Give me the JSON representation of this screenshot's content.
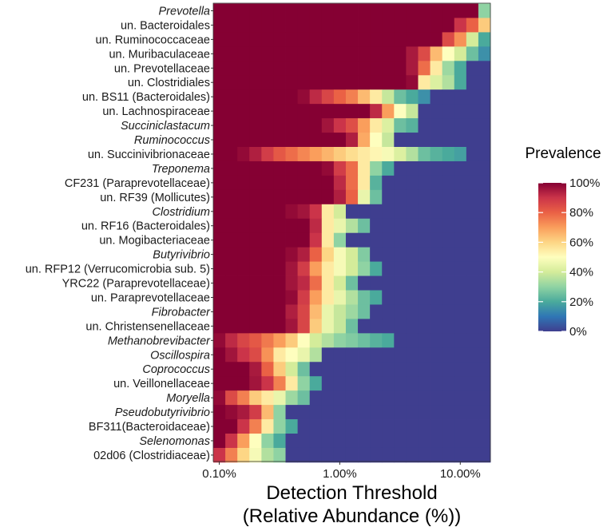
{
  "chart_data": {
    "type": "heatmap",
    "title": "",
    "xlabel_line1": "Detection Threshold",
    "xlabel_line2": "(Relative Abundance (%))",
    "x_scale": "log10",
    "x_tick_labels": [
      "0.10%",
      "1.00%",
      "10.00%"
    ],
    "x_tick_values": [
      0.1,
      1,
      10
    ],
    "detection_thresholds": [
      0.1,
      0.1259,
      0.1585,
      0.1995,
      0.2512,
      0.3162,
      0.3981,
      0.5012,
      0.631,
      0.7943,
      1.0,
      1.2589,
      1.5849,
      1.9953,
      2.5119,
      3.1623,
      3.9811,
      5.0119,
      6.3096,
      7.9433,
      10.0,
      12.5893,
      15.8489
    ],
    "xlim": [
      0.0891,
      17.78
    ],
    "legend": {
      "title": "Prevalence",
      "tick_labels": [
        "100%",
        "80%",
        "60%",
        "40%",
        "20%",
        "0%"
      ],
      "tick_values": [
        100,
        80,
        60,
        40,
        20,
        0
      ],
      "colors": [
        "#3F3E8F",
        "#2F76B5",
        "#4AAA9C",
        "#8FD3A3",
        "#D4EC9A",
        "#FEFEBE",
        "#FDD685",
        "#FA9E5C",
        "#EA6145",
        "#CB3449",
        "#850033"
      ]
    },
    "taxa": [
      {
        "name": "Prevotella",
        "italic": true,
        "prevalence": [
          100,
          100,
          100,
          100,
          100,
          100,
          100,
          100,
          100,
          100,
          100,
          100,
          100,
          100,
          100,
          100,
          100,
          100,
          100,
          100,
          100,
          100,
          30
        ]
      },
      {
        "name": "un. Bacteroidales",
        "italic": false,
        "prevalence": [
          100,
          100,
          100,
          100,
          100,
          100,
          100,
          100,
          100,
          100,
          100,
          100,
          100,
          100,
          100,
          100,
          100,
          100,
          100,
          100,
          90,
          80,
          62
        ]
      },
      {
        "name": "un. Ruminococcaceae",
        "italic": false,
        "prevalence": [
          100,
          100,
          100,
          100,
          100,
          100,
          100,
          100,
          100,
          100,
          100,
          100,
          100,
          100,
          100,
          100,
          100,
          100,
          100,
          85,
          72,
          40,
          20
        ]
      },
      {
        "name": "un. Muribaculaceae",
        "italic": false,
        "prevalence": [
          100,
          100,
          100,
          100,
          100,
          100,
          100,
          100,
          100,
          100,
          100,
          100,
          100,
          100,
          100,
          100,
          95,
          85,
          65,
          50,
          40,
          25,
          15
        ]
      },
      {
        "name": "un. Prevotellaceae",
        "italic": false,
        "prevalence": [
          100,
          100,
          100,
          100,
          100,
          100,
          100,
          100,
          100,
          100,
          100,
          100,
          100,
          100,
          100,
          100,
          95,
          78,
          55,
          32,
          20,
          0,
          0
        ]
      },
      {
        "name": "un. Clostridiales",
        "italic": false,
        "prevalence": [
          100,
          100,
          100,
          100,
          100,
          100,
          100,
          100,
          100,
          100,
          100,
          100,
          100,
          100,
          100,
          100,
          98,
          55,
          42,
          35,
          20,
          0,
          0
        ]
      },
      {
        "name": "un. BS11 (Bacteroidales)",
        "italic": false,
        "prevalence": [
          100,
          100,
          100,
          100,
          100,
          100,
          100,
          98,
          92,
          86,
          80,
          75,
          65,
          55,
          38,
          25,
          20,
          15,
          0,
          0,
          0,
          0,
          0
        ]
      },
      {
        "name": "un. Lachnospiraceae",
        "italic": false,
        "prevalence": [
          100,
          100,
          100,
          100,
          100,
          100,
          100,
          100,
          100,
          100,
          100,
          100,
          100,
          92,
          70,
          50,
          38,
          0,
          0,
          0,
          0,
          0,
          0
        ]
      },
      {
        "name": "Succiniclastacum",
        "italic": true,
        "prevalence": [
          100,
          100,
          100,
          100,
          100,
          100,
          100,
          100,
          100,
          96,
          90,
          84,
          70,
          55,
          42,
          25,
          22,
          0,
          0,
          0,
          0,
          0,
          0
        ]
      },
      {
        "name": "Ruminococcus",
        "italic": true,
        "prevalence": [
          100,
          100,
          100,
          100,
          100,
          100,
          100,
          100,
          100,
          100,
          100,
          94,
          68,
          50,
          38,
          0,
          0,
          0,
          0,
          0,
          0,
          0,
          0
        ]
      },
      {
        "name": "un. Succinivibrionaceae",
        "italic": false,
        "prevalence": [
          100,
          100,
          98,
          94,
          88,
          82,
          78,
          74,
          70,
          66,
          62,
          58,
          55,
          52,
          48,
          42,
          35,
          25,
          22,
          20,
          18,
          0,
          0
        ]
      },
      {
        "name": "Treponema",
        "italic": true,
        "prevalence": [
          100,
          100,
          100,
          100,
          100,
          100,
          100,
          100,
          100,
          98,
          88,
          78,
          55,
          30,
          20,
          0,
          0,
          0,
          0,
          0,
          0,
          0,
          0
        ]
      },
      {
        "name": "CF231 (Paraprevotellaceae)",
        "italic": false,
        "prevalence": [
          100,
          100,
          100,
          100,
          100,
          100,
          100,
          100,
          100,
          100,
          92,
          78,
          55,
          22,
          0,
          0,
          0,
          0,
          0,
          0,
          0,
          0,
          0
        ]
      },
      {
        "name": "un. RF39 (Mollicutes)",
        "italic": false,
        "prevalence": [
          100,
          100,
          100,
          100,
          100,
          100,
          100,
          100,
          100,
          100,
          94,
          80,
          45,
          25,
          0,
          0,
          0,
          0,
          0,
          0,
          0,
          0,
          0
        ]
      },
      {
        "name": "Clostridium",
        "italic": true,
        "prevalence": [
          100,
          100,
          100,
          100,
          100,
          100,
          98,
          96,
          90,
          55,
          40,
          0,
          0,
          0,
          0,
          0,
          0,
          0,
          0,
          0,
          0,
          0,
          0
        ]
      },
      {
        "name": "un. RF16 (Bacteroidales)",
        "italic": false,
        "prevalence": [
          100,
          100,
          100,
          100,
          100,
          100,
          100,
          100,
          92,
          55,
          45,
          35,
          25,
          0,
          0,
          0,
          0,
          0,
          0,
          0,
          0,
          0,
          0
        ]
      },
      {
        "name": "un. Mogibacteriaceae",
        "italic": false,
        "prevalence": [
          100,
          100,
          100,
          100,
          100,
          100,
          100,
          100,
          90,
          55,
          30,
          0,
          0,
          0,
          0,
          0,
          0,
          0,
          0,
          0,
          0,
          0,
          0
        ]
      },
      {
        "name": "Butyrivibrio",
        "italic": true,
        "prevalence": [
          100,
          100,
          100,
          100,
          100,
          100,
          98,
          94,
          80,
          60,
          48,
          40,
          28,
          0,
          0,
          0,
          0,
          0,
          0,
          0,
          0,
          0,
          0
        ]
      },
      {
        "name": "un. RFP12 (Verrucomicrobia sub. 5)",
        "italic": false,
        "prevalence": [
          100,
          100,
          100,
          100,
          100,
          100,
          96,
          88,
          70,
          55,
          48,
          40,
          30,
          20,
          0,
          0,
          0,
          0,
          0,
          0,
          0,
          0,
          0
        ]
      },
      {
        "name": "YRC22 (Paraprevotellaceae)",
        "italic": false,
        "prevalence": [
          100,
          100,
          100,
          100,
          100,
          100,
          96,
          92,
          78,
          55,
          40,
          25,
          0,
          0,
          0,
          0,
          0,
          0,
          0,
          0,
          0,
          0,
          0
        ]
      },
      {
        "name": "un. Paraprevotellaceae",
        "italic": false,
        "prevalence": [
          100,
          100,
          100,
          100,
          100,
          100,
          98,
          88,
          70,
          55,
          45,
          35,
          25,
          20,
          0,
          0,
          0,
          0,
          0,
          0,
          0,
          0,
          0
        ]
      },
      {
        "name": "Fibrobacter",
        "italic": true,
        "prevalence": [
          100,
          100,
          100,
          100,
          100,
          100,
          94,
          86,
          65,
          45,
          38,
          32,
          25,
          0,
          0,
          0,
          0,
          0,
          0,
          0,
          0,
          0,
          0
        ]
      },
      {
        "name": "un. Christensenellaceae",
        "italic": false,
        "prevalence": [
          100,
          100,
          100,
          100,
          100,
          100,
          96,
          86,
          62,
          45,
          38,
          25,
          0,
          0,
          0,
          0,
          0,
          0,
          0,
          0,
          0,
          0,
          0
        ]
      },
      {
        "name": "Methanobrevibacter",
        "italic": true,
        "prevalence": [
          98,
          92,
          86,
          82,
          76,
          70,
          62,
          50,
          40,
          35,
          30,
          28,
          25,
          22,
          20,
          0,
          0,
          0,
          0,
          0,
          0,
          0,
          0
        ]
      },
      {
        "name": "Oscillospira",
        "italic": true,
        "prevalence": [
          100,
          96,
          90,
          85,
          72,
          55,
          50,
          45,
          35,
          0,
          0,
          0,
          0,
          0,
          0,
          0,
          0,
          0,
          0,
          0,
          0,
          0,
          0
        ]
      },
      {
        "name": "Coprococcus",
        "italic": true,
        "prevalence": [
          100,
          100,
          100,
          95,
          80,
          62,
          40,
          25,
          0,
          0,
          0,
          0,
          0,
          0,
          0,
          0,
          0,
          0,
          0,
          0,
          0,
          0,
          0
        ]
      },
      {
        "name": "un. Veillonellaceae",
        "italic": false,
        "prevalence": [
          100,
          100,
          100,
          96,
          90,
          75,
          55,
          30,
          20,
          0,
          0,
          0,
          0,
          0,
          0,
          0,
          0,
          0,
          0,
          0,
          0,
          0,
          0
        ]
      },
      {
        "name": "Moryella",
        "italic": true,
        "prevalence": [
          98,
          85,
          75,
          62,
          55,
          45,
          32,
          25,
          0,
          0,
          0,
          0,
          0,
          0,
          0,
          0,
          0,
          0,
          0,
          0,
          0,
          0,
          0
        ]
      },
      {
        "name": "Pseudobutyrivibrio",
        "italic": true,
        "prevalence": [
          100,
          98,
          95,
          88,
          65,
          30,
          0,
          0,
          0,
          0,
          0,
          0,
          0,
          0,
          0,
          0,
          0,
          0,
          0,
          0,
          0,
          0,
          0
        ]
      },
      {
        "name": "BF311(Bacteroidaceae)",
        "italic": false,
        "prevalence": [
          100,
          100,
          90,
          75,
          55,
          30,
          20,
          0,
          0,
          0,
          0,
          0,
          0,
          0,
          0,
          0,
          0,
          0,
          0,
          0,
          0,
          0,
          0
        ]
      },
      {
        "name": "Selenomonas",
        "italic": true,
        "prevalence": [
          100,
          90,
          70,
          50,
          30,
          20,
          0,
          0,
          0,
          0,
          0,
          0,
          0,
          0,
          0,
          0,
          0,
          0,
          0,
          0,
          0,
          0,
          0
        ]
      },
      {
        "name": "02d06 (Clostridiaceae)",
        "italic": false,
        "prevalence": [
          90,
          75,
          60,
          48,
          35,
          30,
          0,
          0,
          0,
          0,
          0,
          0,
          0,
          0,
          0,
          0,
          0,
          0,
          0,
          0,
          0,
          0,
          0
        ]
      }
    ]
  }
}
